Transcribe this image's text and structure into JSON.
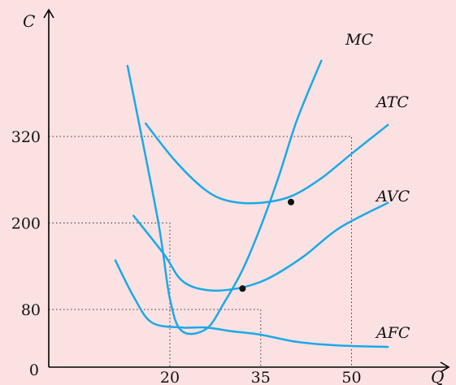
{
  "chart_data": {
    "type": "line",
    "title": "",
    "xlabel": "Q",
    "ylabel": "C",
    "origin_label": "0",
    "x_ticks": [
      20,
      35,
      50
    ],
    "y_ticks": [
      80,
      200,
      320
    ],
    "x_range": [
      0,
      59
    ],
    "y_range": [
      0,
      430
    ],
    "series": [
      {
        "name": "MC",
        "points": [
          [
            13,
            418
          ],
          [
            18,
            205
          ],
          [
            20,
            95
          ],
          [
            22,
            50
          ],
          [
            26,
            53
          ],
          [
            29,
            90
          ],
          [
            32,
            135
          ],
          [
            35,
            195
          ],
          [
            38,
            265
          ],
          [
            41,
            343
          ],
          [
            45,
            425
          ]
        ]
      },
      {
        "name": "ATC",
        "points": [
          [
            16,
            338
          ],
          [
            21,
            285
          ],
          [
            26,
            245
          ],
          [
            30,
            230
          ],
          [
            35,
            228
          ],
          [
            40,
            237
          ],
          [
            45,
            262
          ],
          [
            50,
            296
          ],
          [
            56,
            336
          ]
        ]
      },
      {
        "name": "AVC",
        "points": [
          [
            14,
            210
          ],
          [
            19,
            157
          ],
          [
            22,
            120
          ],
          [
            26,
            107
          ],
          [
            31,
            109
          ],
          [
            36,
            122
          ],
          [
            42,
            153
          ],
          [
            48,
            193
          ],
          [
            56,
            228
          ]
        ]
      },
      {
        "name": "AFC",
        "points": [
          [
            11,
            148
          ],
          [
            14,
            98
          ],
          [
            17,
            62
          ],
          [
            22,
            55
          ],
          [
            26,
            55
          ],
          [
            30,
            50
          ],
          [
            35,
            45
          ],
          [
            41,
            35
          ],
          [
            48,
            30
          ],
          [
            56,
            28
          ]
        ]
      }
    ],
    "guides": [
      {
        "from": [
          0,
          320
        ],
        "corner": [
          50,
          320
        ],
        "to": [
          50,
          0
        ]
      },
      {
        "from": [
          0,
          200
        ],
        "corner": [
          20,
          200
        ],
        "to": [
          20,
          0
        ]
      },
      {
        "from": [
          0,
          80
        ],
        "corner": [
          35,
          80
        ],
        "to": [
          35,
          0
        ]
      }
    ],
    "markers": [
      [
        32,
        109
      ],
      [
        40,
        229
      ]
    ],
    "colors": {
      "curve": "#1aa9e8",
      "background": "#fbe1e2",
      "axis": "#000000"
    }
  }
}
